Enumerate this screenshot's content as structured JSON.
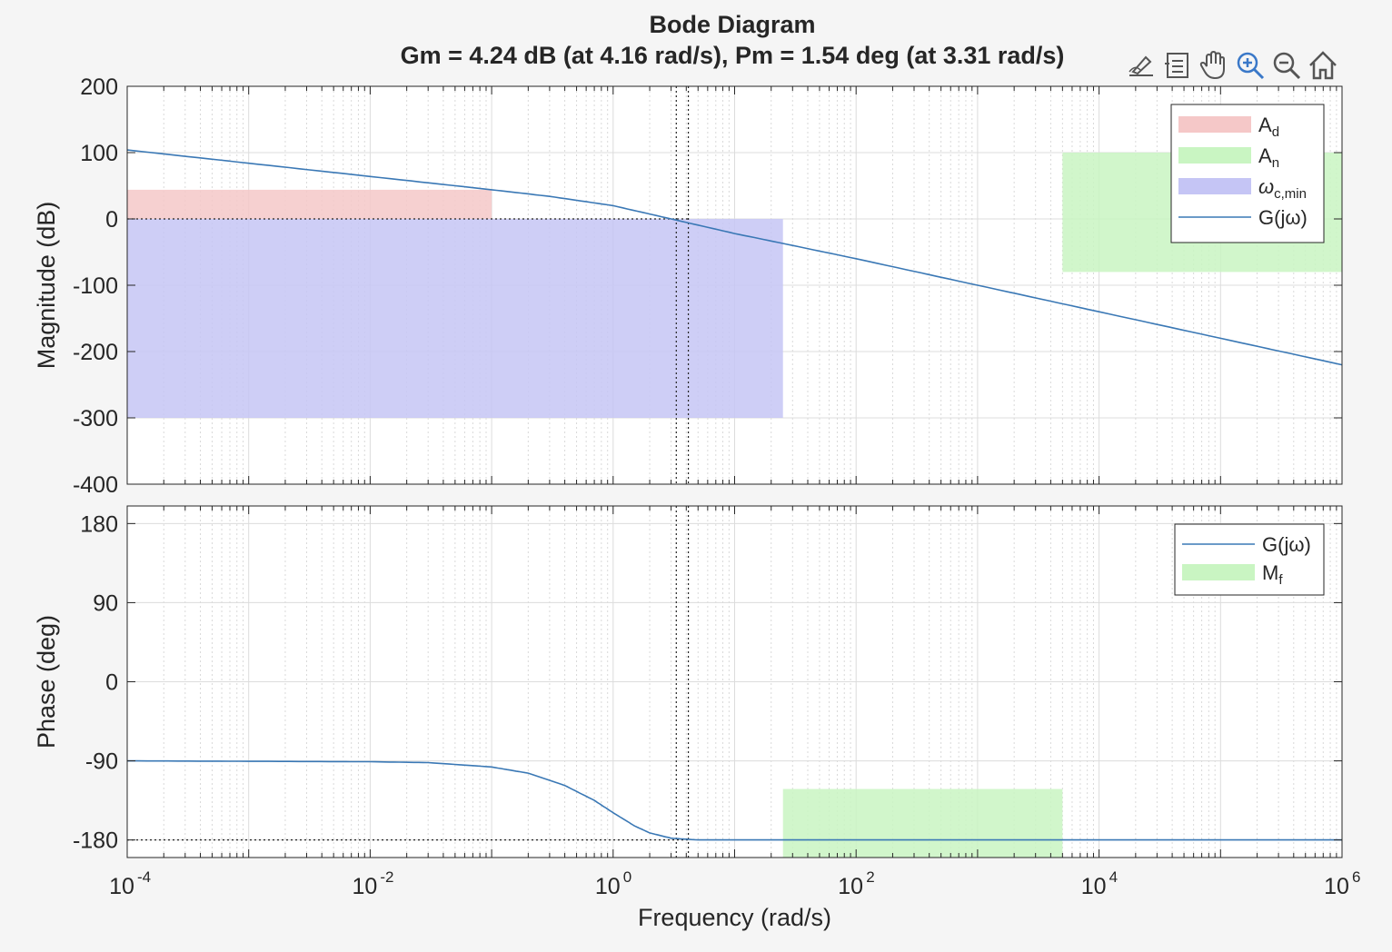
{
  "title": "Bode Diagram",
  "subtitle": "Gm = 4.24 dB (at 4.16 rad/s),  Pm = 1.54 deg (at 3.31 rad/s)",
  "toolbar": {
    "icons": [
      "edit-icon",
      "legend-icon",
      "pan-hand-icon",
      "zoom-in-icon",
      "zoom-out-icon",
      "home-icon"
    ]
  },
  "colors": {
    "curve": "#3a78b5",
    "A_d": "#f5c8c8",
    "A_n": "#c9f5c2",
    "omega_c_min": "#c5c5f5",
    "M_f": "#c9f5c2",
    "background": "#f5f5f5",
    "axes": "#ffffff"
  },
  "chart_data": [
    {
      "type": "line",
      "panel": "magnitude",
      "ylabel": "Magnitude (dB)",
      "xscale": "log",
      "xlim": [
        0.0001,
        1000000
      ],
      "ylim": [
        -400,
        200
      ],
      "yticks": [
        200,
        100,
        0,
        -100,
        -200,
        -300,
        -400
      ],
      "ytick_labels": [
        "200",
        "100",
        "0",
        "-100",
        "-200",
        "-300",
        "-400"
      ],
      "grid": true,
      "series": [
        {
          "name": "G(jω)",
          "x": [
            0.0001,
            0.001,
            0.01,
            0.1,
            0.3,
            1,
            3,
            10,
            30,
            100,
            1000,
            10000,
            100000,
            1000000
          ],
          "y": [
            104,
            84,
            64,
            44,
            34,
            20,
            0,
            -22,
            -40,
            -60,
            -100,
            -140,
            -180,
            -220
          ]
        }
      ],
      "regions": [
        {
          "name": "A",
          "sub": "d",
          "x": [
            0.0001,
            0.1
          ],
          "y": [
            0,
            44
          ]
        },
        {
          "name": "A",
          "sub": "n",
          "x": [
            5000,
            1000000
          ],
          "y": [
            -80,
            100
          ]
        },
        {
          "name": "ω",
          "sub": "c,min",
          "x": [
            0.0001,
            25
          ],
          "y": [
            -300,
            0
          ]
        }
      ],
      "legend": {
        "placement": "top-right",
        "order": [
          "A_d",
          "A_n",
          "ω_c,min",
          "G(jω)"
        ]
      }
    },
    {
      "type": "line",
      "panel": "phase",
      "ylabel": "Phase (deg)",
      "xlabel": "Frequency  (rad/s)",
      "xscale": "log",
      "xlim": [
        0.0001,
        1000000
      ],
      "ylim": [
        -200,
        200
      ],
      "yticks": [
        180,
        90,
        0,
        -90,
        -180
      ],
      "ytick_labels": [
        "180",
        "90",
        "0",
        "-90",
        "-180"
      ],
      "xtick_labels": [
        {
          "base": "10",
          "exp": "-4"
        },
        {
          "base": "10",
          "exp": "-2"
        },
        {
          "base": "10",
          "exp": "0"
        },
        {
          "base": "10",
          "exp": "2"
        },
        {
          "base": "10",
          "exp": "4"
        },
        {
          "base": "10",
          "exp": "6"
        }
      ],
      "grid": true,
      "series": [
        {
          "name": "G(jω)",
          "x": [
            0.0001,
            0.001,
            0.01,
            0.03,
            0.1,
            0.2,
            0.4,
            0.7,
            1,
            1.5,
            2,
            3,
            5,
            10,
            100,
            1000000
          ],
          "y": [
            -90,
            -90.5,
            -91,
            -92,
            -97,
            -104,
            -118,
            -135,
            -149,
            -164,
            -172,
            -178,
            -180,
            -180,
            -180,
            -180
          ]
        }
      ],
      "regions": [
        {
          "name": "M",
          "sub": "f",
          "x": [
            25,
            5000
          ],
          "y": [
            -200,
            -122
          ]
        }
      ],
      "legend": {
        "placement": "top-right",
        "order": [
          "G(jω)",
          "M_f"
        ]
      }
    }
  ],
  "margins": {
    "gain_margin_db": 4.24,
    "gain_crossover_freq": 4.16,
    "phase_margin_deg": 1.54,
    "phase_crossover_freq": 3.31
  }
}
